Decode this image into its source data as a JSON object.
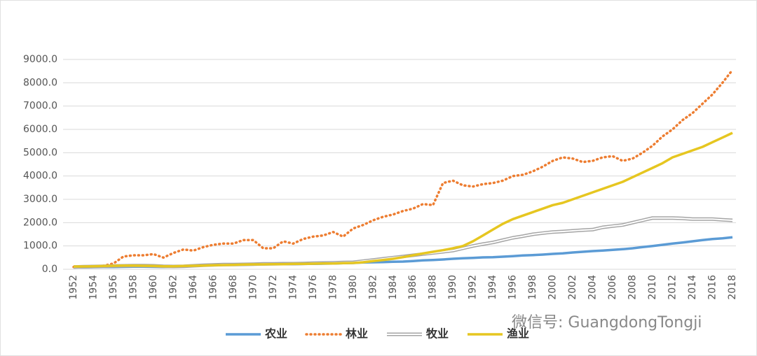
{
  "chart_data": {
    "type": "line",
    "categories": [
      1952,
      null,
      1954,
      null,
      1956,
      null,
      1958,
      null,
      1960,
      null,
      1962,
      null,
      1964,
      null,
      1966,
      null,
      1968,
      null,
      1970,
      null,
      1972,
      null,
      1974,
      null,
      1976,
      null,
      1978,
      null,
      1980,
      null,
      1982,
      null,
      1984,
      null,
      1986,
      null,
      1988,
      null,
      1990,
      null,
      1992,
      null,
      1994,
      null,
      1996,
      null,
      1998,
      null,
      2000,
      null,
      2002,
      null,
      2004,
      null,
      2006,
      null,
      2008,
      null,
      2010,
      null,
      2012,
      null,
      2014,
      null,
      2016,
      null,
      2018
    ],
    "series": [
      {
        "name": "农业",
        "color": "#5b9bd5",
        "line_style": "solid",
        "values": [
          80,
          85,
          90,
          95,
          100,
          105,
          110,
          110,
          105,
          100,
          110,
          130,
          150,
          170,
          180,
          190,
          190,
          200,
          210,
          210,
          215,
          220,
          225,
          230,
          235,
          240,
          250,
          260,
          270,
          290,
          300,
          310,
          320,
          330,
          350,
          380,
          400,
          420,
          450,
          470,
          490,
          510,
          520,
          540,
          560,
          590,
          610,
          630,
          660,
          680,
          720,
          750,
          780,
          800,
          830,
          860,
          900,
          950,
          1000,
          1050,
          1100,
          1150,
          1200,
          1250,
          1300,
          1330,
          1370
        ]
      },
      {
        "name": "林业",
        "color": "#ed7d31",
        "line_style": "dotted",
        "values": [
          100,
          100,
          110,
          150,
          250,
          550,
          600,
          600,
          650,
          500,
          700,
          850,
          800,
          950,
          1050,
          1100,
          1100,
          1250,
          1250,
          900,
          900,
          1200,
          1100,
          1300,
          1400,
          1450,
          1600,
          1400,
          1750,
          1900,
          2100,
          2250,
          2350,
          2500,
          2600,
          2800,
          2750,
          3700,
          3800,
          3600,
          3550,
          3650,
          3700,
          3800,
          4000,
          4050,
          4200,
          4400,
          4650,
          4800,
          4750,
          4600,
          4650,
          4800,
          4850,
          4650,
          4750,
          5000,
          5300,
          5700,
          6000,
          6400,
          6700,
          7100,
          7500,
          8000,
          8550
        ]
      },
      {
        "name": "牧业",
        "color": "#a5a5a5",
        "line_style": "hollow",
        "values": [
          100,
          110,
          120,
          130,
          140,
          150,
          160,
          160,
          150,
          130,
          120,
          130,
          150,
          170,
          190,
          200,
          200,
          210,
          220,
          230,
          230,
          240,
          240,
          250,
          260,
          270,
          280,
          290,
          300,
          350,
          400,
          450,
          500,
          550,
          600,
          650,
          700,
          750,
          800,
          900,
          1000,
          1080,
          1150,
          1250,
          1350,
          1420,
          1500,
          1550,
          1600,
          1620,
          1650,
          1680,
          1700,
          1800,
          1850,
          1900,
          2000,
          2100,
          2200,
          2200,
          2200,
          2180,
          2150,
          2150,
          2150,
          2120,
          2100
        ]
      },
      {
        "name": "渔业",
        "color": "#e6c620",
        "line_style": "solid",
        "values": [
          120,
          120,
          130,
          140,
          150,
          160,
          160,
          150,
          140,
          130,
          130,
          140,
          150,
          160,
          170,
          180,
          190,
          200,
          210,
          210,
          220,
          220,
          230,
          230,
          240,
          250,
          250,
          260,
          270,
          300,
          350,
          400,
          450,
          520,
          600,
          680,
          750,
          820,
          900,
          1000,
          1200,
          1450,
          1700,
          1950,
          2150,
          2300,
          2450,
          2600,
          2750,
          2850,
          3000,
          3150,
          3300,
          3450,
          3600,
          3750,
          3950,
          4150,
          4350,
          4550,
          4800,
          4950,
          5100,
          5250,
          5450,
          5650,
          5850
        ]
      }
    ],
    "ylim": [
      0,
      9000
    ],
    "yticks": [
      {
        "value": 0,
        "label": "0.0"
      },
      {
        "value": 1000,
        "label": "1000.0"
      },
      {
        "value": 2000,
        "label": "2000.0"
      },
      {
        "value": 3000,
        "label": "3000.0"
      },
      {
        "value": 4000,
        "label": "4000.0"
      },
      {
        "value": 5000,
        "label": "5000.0"
      },
      {
        "value": 6000,
        "label": "6000.0"
      },
      {
        "value": 7000,
        "label": "7000.0"
      },
      {
        "value": 8000,
        "label": "8000.0"
      },
      {
        "value": 9000,
        "label": "9000.0"
      }
    ],
    "grid": true,
    "legend": "bottom",
    "watermark": "微信号: GuangdongTongji"
  }
}
